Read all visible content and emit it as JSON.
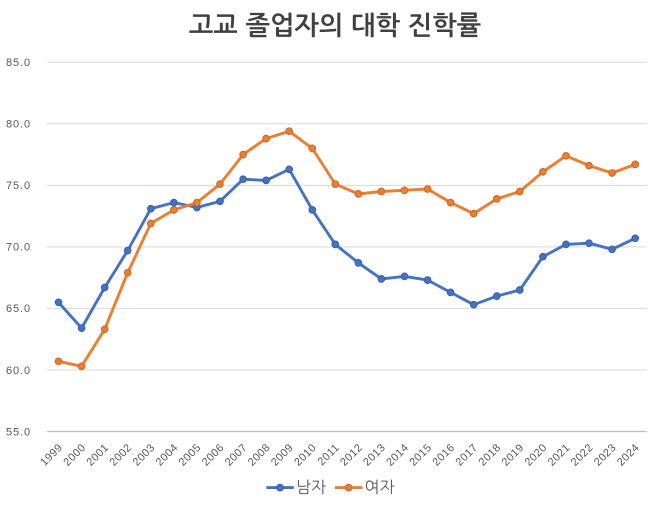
{
  "title": "고교 졸업자의 대학 진학률",
  "chart_data": {
    "type": "line",
    "title": "고교 졸업자의 대학 진학률",
    "categories": [
      "1999",
      "2000",
      "2001",
      "2002",
      "2003",
      "2004",
      "2005",
      "2006",
      "2007",
      "2008",
      "2009",
      "2010",
      "2011",
      "2012",
      "2013",
      "2014",
      "2015",
      "2016",
      "2017",
      "2018",
      "2019",
      "2020",
      "2021",
      "2022",
      "2023",
      "2024"
    ],
    "series": [
      {
        "name": "남자",
        "color": "#4472C4",
        "marker_edge": "#3A62AC",
        "values": [
          65.5,
          63.4,
          66.7,
          69.7,
          73.1,
          73.6,
          73.2,
          73.7,
          75.5,
          75.4,
          76.3,
          73.0,
          70.2,
          68.7,
          67.4,
          67.6,
          67.3,
          66.3,
          65.3,
          66.0,
          66.5,
          69.2,
          70.2,
          70.3,
          69.8,
          70.7
        ]
      },
      {
        "name": "여자",
        "color": "#ED7D31",
        "marker_edge": "#CB6A26",
        "values": [
          60.7,
          60.3,
          63.3,
          67.9,
          71.9,
          73.0,
          73.6,
          75.1,
          77.5,
          78.8,
          79.4,
          78.0,
          75.1,
          74.3,
          74.5,
          74.6,
          74.7,
          73.6,
          72.7,
          73.9,
          74.5,
          76.1,
          77.4,
          76.6,
          76.0,
          76.7
        ]
      }
    ],
    "xlabel": "",
    "ylabel": "",
    "ylim": [
      55,
      85
    ],
    "ytick_step": 5,
    "y_tick_labels": [
      "55.0",
      "60.0",
      "65.0",
      "70.0",
      "75.0",
      "80.0",
      "85.0"
    ],
    "grid": true,
    "legend_position": "bottom"
  },
  "colors": {
    "background": "#FFFFFF",
    "gridline": "#D9D9D9",
    "axis_line": "#BFBFBF",
    "tick_label": "#595959",
    "title": "#404040",
    "legend_label": "#595959"
  }
}
